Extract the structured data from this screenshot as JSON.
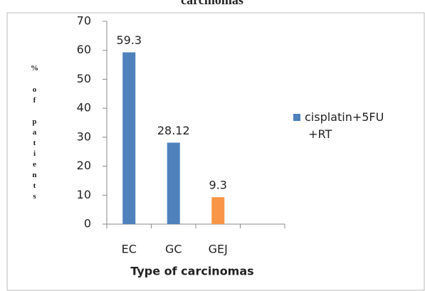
{
  "chart_data": {
    "type": "bar",
    "title": "carcinomas",
    "xlabel": "Type of carcinomas",
    "ylabel": "% of patients",
    "categories": [
      "EC",
      "GC",
      "GEJ",
      null
    ],
    "series": [
      {
        "name": "cisplatin+5FU +RT",
        "color": "#4f81bd",
        "colors": [
          "#4f81bd",
          "#4f81bd",
          "#f79646",
          null
        ],
        "values": [
          59.3,
          28.12,
          9.3,
          null
        ]
      }
    ],
    "ylim": [
      0,
      70
    ],
    "yticks": [
      0,
      10,
      20,
      30,
      40,
      50,
      60,
      70
    ],
    "grid": false,
    "legend": "right"
  }
}
